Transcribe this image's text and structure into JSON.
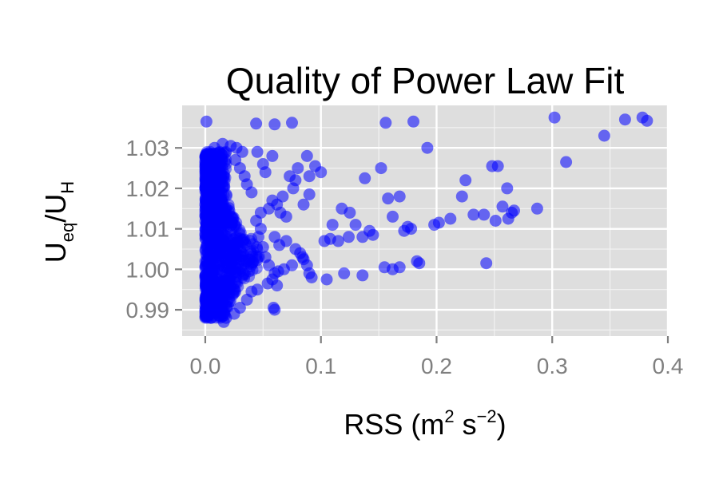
{
  "chart_data": {
    "type": "scatter",
    "title": "Quality of Power Law Fit",
    "xlabel": {
      "prefix": "RSS (m",
      "sup1": "2",
      "mid": " s",
      "sup2": "−2",
      "suffix": ")"
    },
    "ylabel": {
      "u1": "U",
      "sub1": "eq",
      "slash": "/",
      "u2": "U",
      "sub2": "H"
    },
    "xlim": [
      -0.02,
      0.4
    ],
    "ylim": [
      0.9835,
      1.0405
    ],
    "x_ticks": [
      0.0,
      0.1,
      0.2,
      0.3,
      0.4
    ],
    "x_tick_labels": [
      "0.0",
      "0.1",
      "0.2",
      "0.3",
      "0.4"
    ],
    "y_ticks": [
      0.99,
      1.0,
      1.01,
      1.02,
      1.03
    ],
    "y_tick_labels": [
      "0.99",
      "1.00",
      "1.01",
      "1.02",
      "1.03"
    ],
    "grid": true,
    "point_color": "#0000ff",
    "panel_color": "#dedede",
    "series": [
      {
        "values": [
          [
            0.001,
            1.0365
          ],
          [
            0.044,
            1.036
          ],
          [
            0.06,
            1.0358
          ],
          [
            0.075,
            1.0362
          ],
          [
            0.156,
            1.0362
          ],
          [
            0.18,
            1.0365
          ],
          [
            0.302,
            1.0375
          ],
          [
            0.363,
            1.037
          ],
          [
            0.378,
            1.0375
          ],
          [
            0.382,
            1.0367
          ],
          [
            0.345,
            1.033
          ],
          [
            0.312,
            1.0265
          ],
          [
            0.192,
            1.03
          ],
          [
            0.152,
            1.025
          ],
          [
            0.138,
            1.0225
          ],
          [
            0.088,
            1.028
          ],
          [
            0.095,
            1.0255
          ],
          [
            0.248,
            1.0255
          ],
          [
            0.253,
            1.0255
          ],
          [
            0.225,
            1.022
          ],
          [
            0.261,
            1.02
          ],
          [
            0.222,
            1.018
          ],
          [
            0.168,
            1.018
          ],
          [
            0.158,
            1.0175
          ],
          [
            0.162,
            1.013
          ],
          [
            0.125,
            1.014
          ],
          [
            0.13,
            1.011
          ],
          [
            0.142,
            1.0095
          ],
          [
            0.11,
            1.011
          ],
          [
            0.118,
            1.015
          ],
          [
            0.175,
            1.0105
          ],
          [
            0.178,
            1.01
          ],
          [
            0.172,
            1.0095
          ],
          [
            0.198,
            1.011
          ],
          [
            0.202,
            1.0115
          ],
          [
            0.212,
            1.0125
          ],
          [
            0.232,
            1.0135
          ],
          [
            0.241,
            1.0135
          ],
          [
            0.251,
            1.012
          ],
          [
            0.262,
            1.0125
          ],
          [
            0.265,
            1.014
          ],
          [
            0.267,
            1.0145
          ],
          [
            0.257,
            1.0155
          ],
          [
            0.287,
            1.015
          ],
          [
            0.243,
            1.0015
          ],
          [
            0.155,
            1.0005
          ],
          [
            0.162,
            1.0
          ],
          [
            0.168,
            1.0005
          ],
          [
            0.183,
            1.002
          ],
          [
            0.185,
            1.0015
          ],
          [
            0.136,
            0.9985
          ],
          [
            0.12,
            0.999
          ],
          [
            0.105,
            0.9975
          ],
          [
            0.092,
            0.998
          ],
          [
            0.103,
            1.007
          ],
          [
            0.108,
            1.0075
          ],
          [
            0.115,
            1.007
          ],
          [
            0.124,
            1.008
          ],
          [
            0.136,
            1.008
          ],
          [
            0.145,
            1.0085
          ],
          [
            0.09,
            1.0185
          ],
          [
            0.085,
            1.016
          ],
          [
            0.09,
            1.023
          ],
          [
            0.1,
            1.024
          ],
          [
            0.076,
            1.02
          ],
          [
            0.073,
            1.023
          ],
          [
            0.08,
            1.025
          ],
          [
            0.078,
            1.022
          ],
          [
            0.067,
            1.018
          ],
          [
            0.062,
            1.016
          ],
          [
            0.065,
            1.014
          ],
          [
            0.07,
            1.013
          ],
          [
            0.055,
            1.015
          ],
          [
            0.058,
            1.017
          ],
          [
            0.048,
            1.014
          ],
          [
            0.05,
            1.026
          ],
          [
            0.052,
            1.024
          ],
          [
            0.058,
            1.028
          ],
          [
            0.045,
            1.029
          ],
          [
            0.032,
            1.029
          ],
          [
            0.027,
            1.03
          ],
          [
            0.022,
            1.0305
          ],
          [
            0.015,
            1.031
          ],
          [
            0.008,
            1.03
          ],
          [
            0.06,
            1.008
          ],
          [
            0.064,
            1.006
          ],
          [
            0.07,
            1.007
          ],
          [
            0.078,
            1.005
          ],
          [
            0.082,
            1.004
          ],
          [
            0.084,
            1.003
          ],
          [
            0.075,
            1.001
          ],
          [
            0.068,
            1.0
          ],
          [
            0.063,
            0.9995
          ],
          [
            0.06,
            0.999
          ],
          [
            0.058,
            0.9975
          ],
          [
            0.054,
            0.9965
          ],
          [
            0.062,
            0.996
          ],
          [
            0.045,
            0.995
          ],
          [
            0.04,
            0.9945
          ],
          [
            0.036,
            0.9925
          ],
          [
            0.03,
            0.9905
          ],
          [
            0.025,
            0.989
          ],
          [
            0.018,
            0.988
          ],
          [
            0.016,
            0.987
          ],
          [
            0.012,
            0.9885
          ],
          [
            0.01,
            0.99
          ],
          [
            0.006,
            0.991
          ],
          [
            0.059,
            0.9905
          ],
          [
            0.06,
            0.99
          ],
          [
            0.085,
            1.0025
          ],
          [
            0.088,
            1.001
          ],
          [
            0.09,
            0.999
          ],
          [
            0.046,
            1.008
          ],
          [
            0.05,
            1.0055
          ],
          [
            0.052,
            1.003
          ],
          [
            0.055,
            1.001
          ],
          [
            0.048,
            1.01
          ],
          [
            0.044,
            1.012
          ],
          [
            0.04,
            1.019
          ],
          [
            0.036,
            1.021
          ],
          [
            0.034,
            1.023
          ],
          [
            0.03,
            1.025
          ],
          [
            0.026,
            1.027
          ]
        ]
      }
    ]
  }
}
